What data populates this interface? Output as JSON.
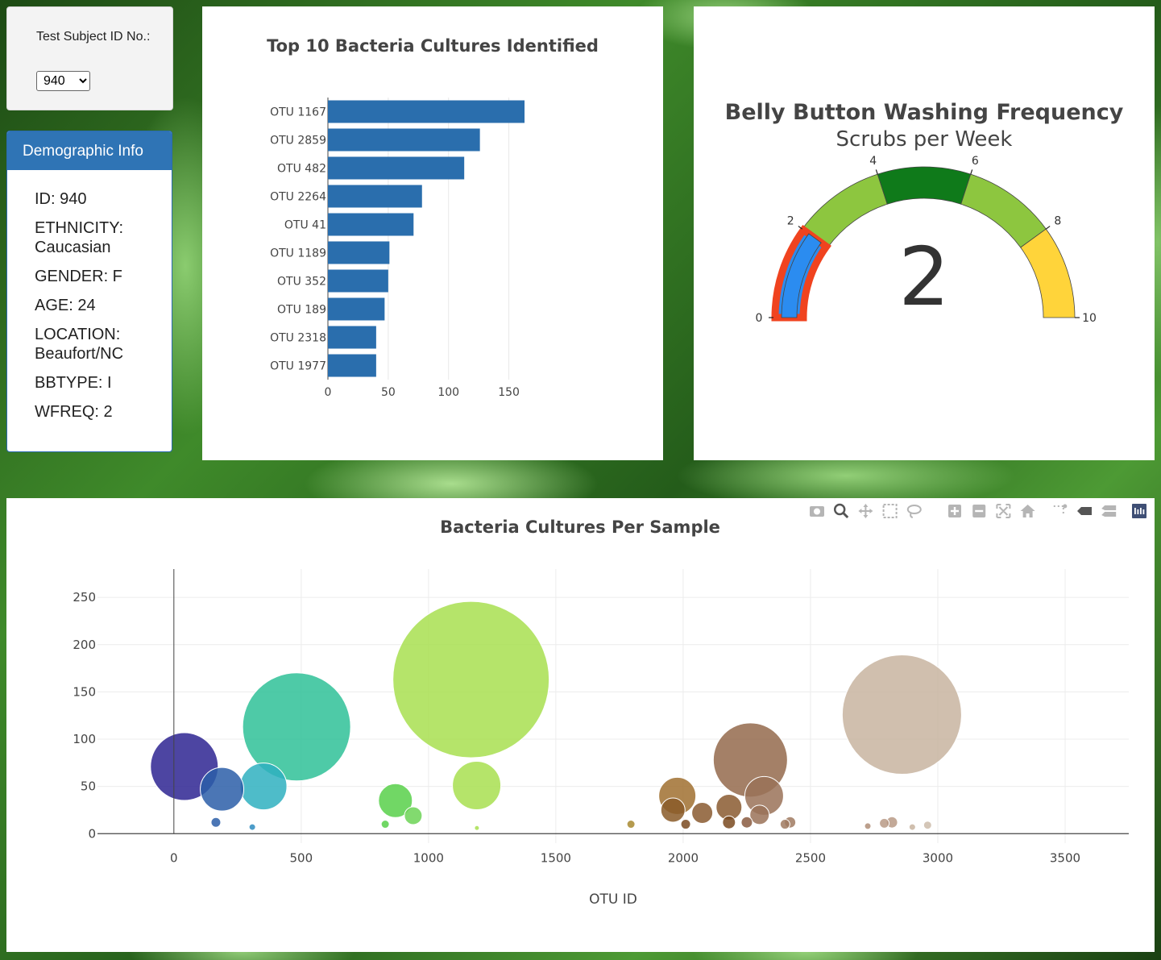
{
  "selector": {
    "label": "Test Subject ID No.:",
    "selected": "940",
    "options": [
      "940"
    ]
  },
  "demographic": {
    "title": "Demographic Info",
    "lines": [
      "ID: 940",
      "ETHNICITY: Caucasian",
      "GENDER: F",
      "AGE: 24",
      "LOCATION: Beaufort/NC",
      "BBTYPE: I",
      "WFREQ: 2"
    ]
  },
  "colors": {
    "bar": "#2a6ead",
    "panel_header": "#2f74b5",
    "gauge_bands": [
      "#2b8cf0",
      "#8dc63f",
      "#0f7a1a",
      "#8dc63f",
      "#ffd43a"
    ],
    "gauge_needle_band": "#f0431f"
  },
  "modebar_icons": [
    "camera-icon",
    "zoom-icon",
    "pan-icon",
    "box-select-icon",
    "lasso-icon",
    "zoom-in-icon",
    "zoom-out-icon",
    "autoscale-icon",
    "reset-axes-icon",
    "spike-lines-icon",
    "hover-closest-icon",
    "hover-compare-icon",
    "plotly-logo-icon"
  ],
  "chart_data": [
    {
      "type": "bar",
      "orientation": "horizontal",
      "title": "Top 10 Bacteria Cultures Identified",
      "categories": [
        "OTU 1167",
        "OTU 2859",
        "OTU 482",
        "OTU 2264",
        "OTU 41",
        "OTU 1189",
        "OTU 352",
        "OTU 189",
        "OTU 2318",
        "OTU 1977"
      ],
      "values": [
        163,
        126,
        113,
        78,
        71,
        51,
        50,
        47,
        40,
        40
      ],
      "xlim": [
        0,
        175
      ],
      "xticks": [
        "0",
        "50",
        "100",
        "150"
      ],
      "grid": true
    },
    {
      "type": "gauge",
      "title": "Belly Button Washing Frequency",
      "subtitle": "Scrubs per Week",
      "value": 2,
      "value_label": "2",
      "range": [
        0,
        10
      ],
      "ticks": [
        "0",
        "2",
        "4",
        "6",
        "8",
        "10"
      ],
      "bands": [
        [
          0,
          2
        ],
        [
          2,
          4
        ],
        [
          4,
          6
        ],
        [
          6,
          8
        ],
        [
          8,
          10
        ]
      ]
    },
    {
      "type": "scatter",
      "subtype": "bubble",
      "title": "Bacteria Cultures Per Sample",
      "xlabel": "OTU ID",
      "ylabel": "",
      "xlim": [
        -300,
        3750
      ],
      "ylim": [
        -10,
        280
      ],
      "xticks": [
        "0",
        "500",
        "1000",
        "1500",
        "2000",
        "2500",
        "3000",
        "3500"
      ],
      "yticks": [
        "0",
        "50",
        "100",
        "150",
        "200",
        "250"
      ],
      "grid": true,
      "points": [
        {
          "x": 41,
          "y": 71,
          "r": 42,
          "color": "#2e2592"
        },
        {
          "x": 189,
          "y": 47,
          "r": 27,
          "color": "#2c5ea8"
        },
        {
          "x": 165,
          "y": 12,
          "r": 6,
          "color": "#2c5ea8"
        },
        {
          "x": 308,
          "y": 7,
          "r": 4,
          "color": "#2e8cc0"
        },
        {
          "x": 352,
          "y": 50,
          "r": 29,
          "color": "#2fb0c0"
        },
        {
          "x": 482,
          "y": 113,
          "r": 67,
          "color": "#2fc198"
        },
        {
          "x": 830,
          "y": 10,
          "r": 5,
          "color": "#58d04a"
        },
        {
          "x": 870,
          "y": 35,
          "r": 21,
          "color": "#58d04a"
        },
        {
          "x": 940,
          "y": 19,
          "r": 11,
          "color": "#6cd456"
        },
        {
          "x": 1167,
          "y": 163,
          "r": 97,
          "color": "#a8df50"
        },
        {
          "x": 1189,
          "y": 51,
          "r": 30,
          "color": "#a8df50"
        },
        {
          "x": 1190,
          "y": 6,
          "r": 3,
          "color": "#a8df50"
        },
        {
          "x": 1795,
          "y": 10,
          "r": 5,
          "color": "#a88a30"
        },
        {
          "x": 1977,
          "y": 40,
          "r": 23,
          "color": "#a07030"
        },
        {
          "x": 1960,
          "y": 25,
          "r": 15,
          "color": "#8a5a28"
        },
        {
          "x": 2010,
          "y": 10,
          "r": 6,
          "color": "#7a4a20"
        },
        {
          "x": 2075,
          "y": 22,
          "r": 13,
          "color": "#8a5a30"
        },
        {
          "x": 2180,
          "y": 28,
          "r": 16,
          "color": "#8a5a30"
        },
        {
          "x": 2180,
          "y": 12,
          "r": 8,
          "color": "#7a4a20"
        },
        {
          "x": 2264,
          "y": 78,
          "r": 46,
          "color": "#946a4c"
        },
        {
          "x": 2250,
          "y": 12,
          "r": 7,
          "color": "#8a5a40"
        },
        {
          "x": 2318,
          "y": 40,
          "r": 24,
          "color": "#9a7258"
        },
        {
          "x": 2300,
          "y": 20,
          "r": 12,
          "color": "#9a7258"
        },
        {
          "x": 2400,
          "y": 10,
          "r": 6,
          "color": "#a07a60"
        },
        {
          "x": 2420,
          "y": 12,
          "r": 7,
          "color": "#a07a60"
        },
        {
          "x": 2725,
          "y": 8,
          "r": 4,
          "color": "#b08e78"
        },
        {
          "x": 2790,
          "y": 11,
          "r": 6,
          "color": "#b89a86"
        },
        {
          "x": 2820,
          "y": 12,
          "r": 7,
          "color": "#b89a86"
        },
        {
          "x": 2859,
          "y": 126,
          "r": 74,
          "color": "#c8b4a0"
        },
        {
          "x": 2900,
          "y": 7,
          "r": 4,
          "color": "#c8b4a0"
        },
        {
          "x": 2960,
          "y": 9,
          "r": 5,
          "color": "#cdbcaa"
        }
      ]
    }
  ]
}
